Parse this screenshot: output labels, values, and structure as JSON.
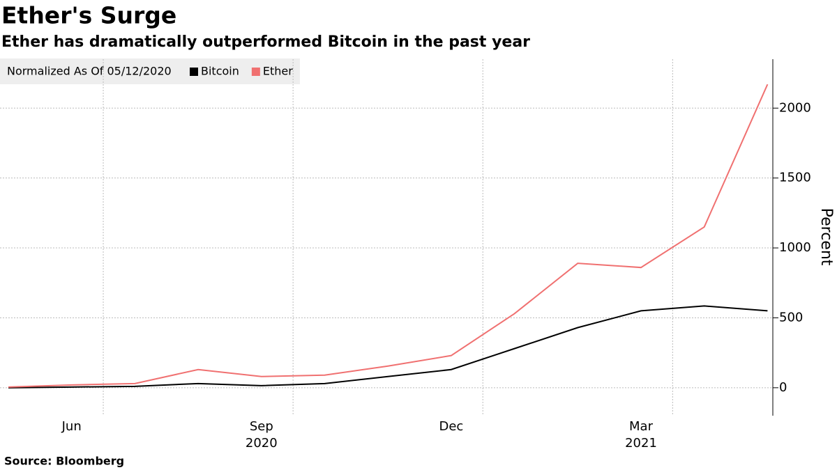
{
  "chart_data": {
    "type": "line",
    "title": "Ether's Surge",
    "subtitle": "Ether has dramatically outperformed Bitcoin in the past year",
    "legend_title": "Normalized As Of 05/12/2020",
    "y_label": "Percent",
    "source": "Source: Bloomberg",
    "x": [
      "2020-05",
      "2020-06",
      "2020-07",
      "2020-08",
      "2020-09",
      "2020-10",
      "2020-11",
      "2020-12",
      "2021-01",
      "2021-02",
      "2021-03",
      "2021-04",
      "2021-05"
    ],
    "series": [
      {
        "name": "Bitcoin",
        "color": "#000000",
        "values": [
          0,
          5,
          10,
          30,
          15,
          30,
          80,
          130,
          280,
          430,
          550,
          585,
          550
        ]
      },
      {
        "name": "Ether",
        "color": "#f07070",
        "values": [
          5,
          20,
          30,
          130,
          80,
          90,
          155,
          230,
          530,
          890,
          860,
          1150,
          2170
        ]
      }
    ],
    "xticks": [
      {
        "value": "2020-06",
        "label": "Jun"
      },
      {
        "value": "2020-09",
        "label": "Sep"
      },
      {
        "value": "2020-12",
        "label": "Dec"
      },
      {
        "value": "2021-03",
        "label": "Mar"
      }
    ],
    "year_labels": [
      {
        "value": "2020-09",
        "label": "2020"
      },
      {
        "value": "2021-03",
        "label": "2021"
      }
    ],
    "ylim": [
      -200,
      2350
    ],
    "yticks": [
      0,
      500,
      1000,
      1500,
      2000
    ],
    "grid": true
  }
}
